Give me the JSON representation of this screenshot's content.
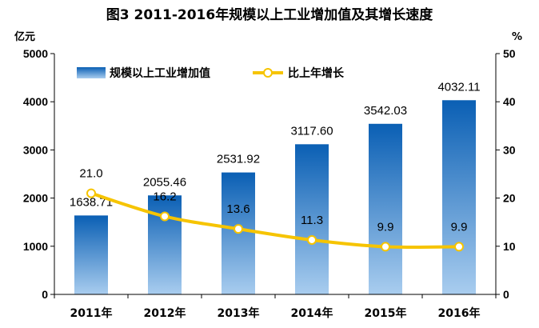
{
  "chart_data": {
    "type": "bar",
    "title": "图3  2011-2016年规模以上工业增加值及其增长速度",
    "categories": [
      "2011年",
      "2012年",
      "2013年",
      "2014年",
      "2015年",
      "2016年"
    ],
    "series": [
      {
        "name": "规模以上工业增加值",
        "type": "bar",
        "axis": "left",
        "values": [
          1638.71,
          2055.46,
          2531.92,
          3117.6,
          3542.03,
          4032.11
        ],
        "labels": [
          "1638.71",
          "2055.46",
          "2531.92",
          "3117.60",
          "3542.03",
          "4032.11"
        ],
        "color_top": "#0a5fb4",
        "color_bottom": "#a9cdef"
      },
      {
        "name": "比上年增长",
        "type": "line",
        "axis": "right",
        "values": [
          21.0,
          16.2,
          13.6,
          11.3,
          9.9,
          9.9
        ],
        "labels": [
          "21.0",
          "16.2",
          "13.6",
          "11.3",
          "9.9",
          "9.9"
        ],
        "color": "#f6c400"
      }
    ],
    "y_left": {
      "unit": "亿元",
      "ylim": [
        0,
        5000
      ],
      "ticks": [
        "0",
        "1000",
        "2000",
        "3000",
        "4000",
        "5000"
      ]
    },
    "y_right": {
      "unit": "%",
      "ylim": [
        0,
        50
      ],
      "ticks": [
        "0",
        "10",
        "20",
        "30",
        "40",
        "50"
      ]
    },
    "grid": false,
    "legend_position": "top-left"
  }
}
